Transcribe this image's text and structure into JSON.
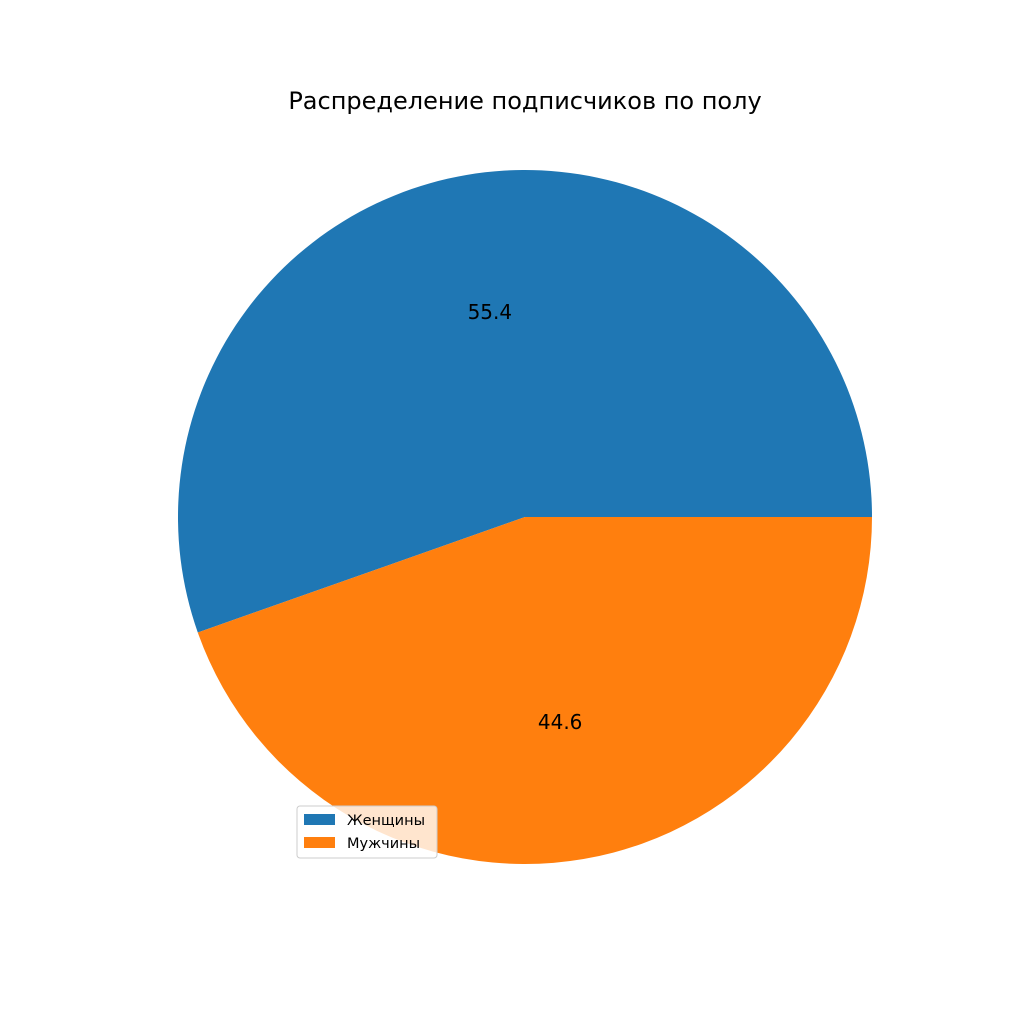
{
  "chart_data": {
    "type": "pie",
    "title": "Распределение подписчиков по полу",
    "labels": [
      "Женщины",
      "Мужчины"
    ],
    "values": [
      55.4,
      44.6
    ],
    "value_labels": [
      "55.4",
      "44.6"
    ],
    "colors": [
      "#1f77b4",
      "#ff7f0e"
    ],
    "start_angle_deg": 0,
    "direction": "counterclockwise",
    "legend": {
      "placement": "lower-left",
      "entries": [
        "Женщины",
        "Мужчины"
      ]
    }
  }
}
